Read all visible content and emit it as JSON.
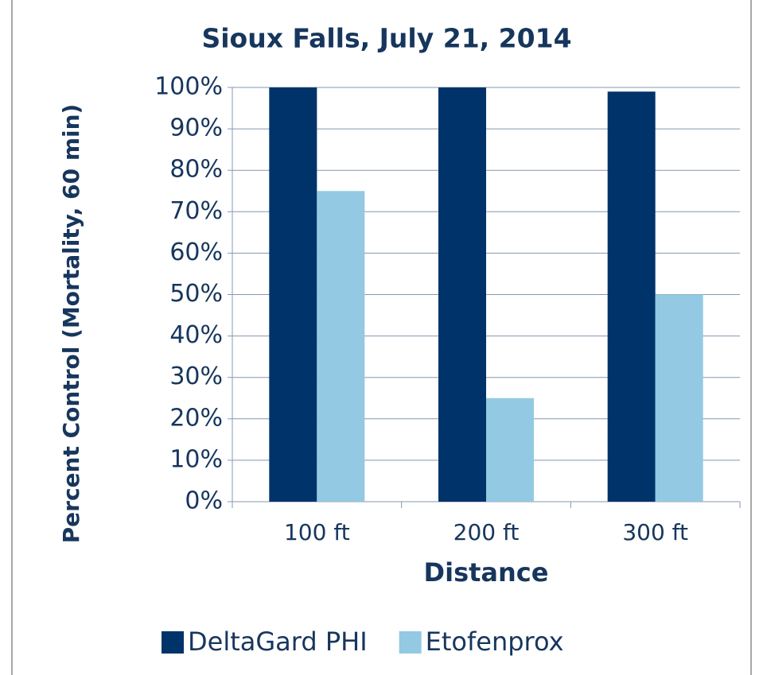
{
  "chart_data": {
    "type": "bar",
    "title": "Sioux Falls, July 21, 2014",
    "x_label": "Distance",
    "y_label": "Percent Control (Mortality, 60 min)",
    "categories": [
      "100 ft",
      "200 ft",
      "300 ft"
    ],
    "series": [
      {
        "name": "DeltaGard PHI",
        "color": "#00336a",
        "values": [
          100,
          100,
          99
        ]
      },
      {
        "name": "Etofenprox",
        "color": "#93c9e3",
        "values": [
          75,
          25,
          50
        ]
      }
    ],
    "ylim": [
      0,
      100
    ],
    "yticks": [
      {
        "value": 0,
        "label": "0%"
      },
      {
        "value": 10,
        "label": "10%"
      },
      {
        "value": 20,
        "label": "20%"
      },
      {
        "value": 30,
        "label": "30%"
      },
      {
        "value": 40,
        "label": "40%"
      },
      {
        "value": 50,
        "label": "50%"
      },
      {
        "value": 60,
        "label": "60%"
      },
      {
        "value": 70,
        "label": "70%"
      },
      {
        "value": 80,
        "label": "80%"
      },
      {
        "value": 90,
        "label": "90%"
      },
      {
        "value": 100,
        "label": "100%"
      }
    ],
    "grid": true,
    "legend": "bottom"
  }
}
